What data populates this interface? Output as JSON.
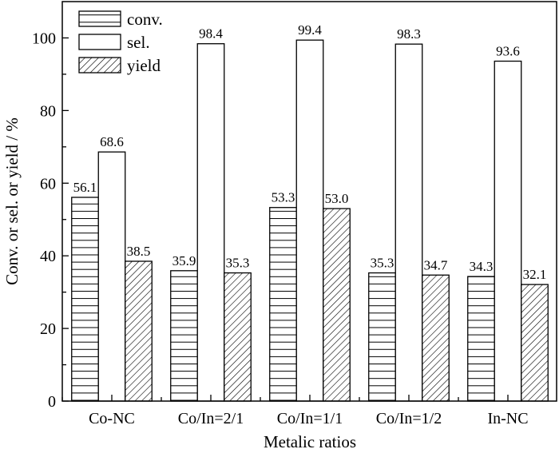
{
  "chart_data": {
    "type": "bar",
    "title": "",
    "xlabel": "Metalic ratios",
    "ylabel": "Conv. or sel. or yield / %",
    "ylim": [
      0,
      110
    ],
    "yticks": [
      0,
      20,
      40,
      60,
      80,
      100
    ],
    "categories": [
      "Co-NC",
      "Co/In=2/1",
      "Co/In=1/1",
      "Co/In=1/2",
      "In-NC"
    ],
    "series": [
      {
        "name": "conv.",
        "pattern": "horizontal-lines",
        "values": [
          56.1,
          35.9,
          53.3,
          35.3,
          34.3
        ],
        "labels": [
          "56.1",
          "35.9",
          "53.3",
          "35.3",
          "34.3"
        ]
      },
      {
        "name": "sel.",
        "pattern": "empty",
        "values": [
          68.6,
          98.4,
          99.4,
          98.3,
          93.6
        ],
        "labels": [
          "68.6",
          "98.4",
          "99.4",
          "98.3",
          "93.6"
        ]
      },
      {
        "name": "yield",
        "pattern": "diagonal-hatch",
        "values": [
          38.5,
          35.3,
          53.0,
          34.7,
          32.1
        ],
        "labels": [
          "38.5",
          "35.3",
          "53.0",
          "34.7",
          "32.1"
        ]
      }
    ],
    "legend": "top-left",
    "grid": false
  }
}
